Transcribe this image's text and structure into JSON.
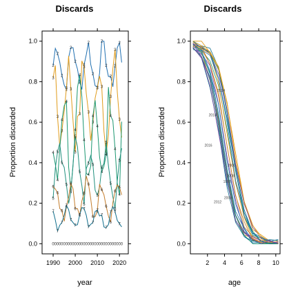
{
  "chart_data": [
    {
      "type": "line",
      "title": "Discards",
      "xlabel": "year",
      "ylabel": "Proportion discarded",
      "xlim": [
        1985,
        2024
      ],
      "ylim": [
        -0.05,
        1.05
      ],
      "xticks": [
        "1990",
        "2000",
        "2010",
        "2020"
      ],
      "yticks": [
        "0.0",
        "0.2",
        "0.4",
        "0.6",
        "0.8",
        "1.0"
      ],
      "series_colors": [
        "#1f6fb0",
        "#e09b1a",
        "#1a9670",
        "#1f8f7d",
        "#c47c2a",
        "#0f6e8c"
      ],
      "marker_labels": [
        "0",
        "1",
        "2",
        "3",
        "4",
        "5",
        "6",
        "7",
        "8",
        "9"
      ]
    },
    {
      "type": "line",
      "title": "Discards",
      "xlabel": "age",
      "ylabel": "Proportion discarded",
      "xlim": [
        0,
        10.5
      ],
      "ylim": [
        -0.05,
        1.05
      ],
      "xticks": [
        "2",
        "4",
        "6",
        "8",
        "10"
      ],
      "yticks": [
        "0.0",
        "0.2",
        "0.4",
        "0.6",
        "0.8",
        "1.0"
      ],
      "series_colors": [
        "#1f6fb0",
        "#e09b1a",
        "#1a9670",
        "#7b3fa0",
        "#c47c2a",
        "#0f6e8c"
      ],
      "visible_year_labels": [
        "2004",
        "2006",
        "2008",
        "1998",
        "2016",
        "2018",
        "2012",
        "2000"
      ]
    }
  ]
}
